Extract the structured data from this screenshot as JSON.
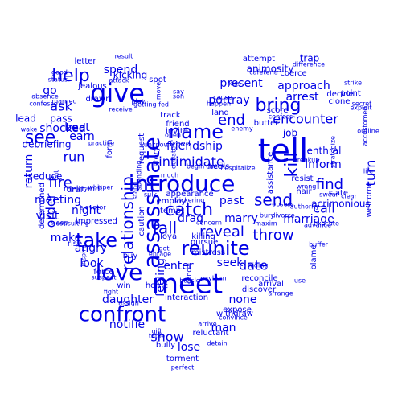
{
  "color": "#0000e6",
  "words": [
    "tell",
    "meet",
    "give",
    "introduce",
    "assassinate",
    "love",
    "confront",
    "take",
    "reunite",
    "name",
    "see",
    "help",
    "catch",
    "kill",
    "bring",
    "relationship",
    "send",
    "fall",
    "throw",
    "inform",
    "find",
    "fire",
    "reveal",
    "call",
    "portray",
    "turn",
    "end",
    "encounter",
    "arrest",
    "approach",
    "date",
    "marry",
    "present",
    "intimidate",
    "friendship",
    "run",
    "order",
    "ask",
    "return",
    "visit",
    "show",
    "daughter",
    "look",
    "seek",
    "none",
    "man",
    "notifie",
    "angry",
    "meeting",
    "make",
    "night",
    "earn",
    "shocked",
    "beat",
    "spend",
    "lead",
    "go",
    "kicking",
    "letter",
    "job",
    "drag",
    "past",
    "marriage",
    "enter",
    "feeling",
    "lose",
    "interaction",
    "bully",
    "torment",
    "perfect",
    "detain",
    "arrive",
    "reluctant",
    "withdraw",
    "expose",
    "convince",
    "discover",
    "arrival",
    "reconcile",
    "blame",
    "acrimonious",
    "slate",
    "swear",
    "hair",
    "resist",
    "enthral",
    "welcome",
    "clone",
    "decide",
    "exploit",
    "secret",
    "outline",
    "life",
    "animosity",
    "attempt",
    "trap",
    "difference",
    "coerce",
    "cafeteria",
    "kiss",
    "cause",
    "happen",
    "land",
    "score",
    "confess",
    "butter",
    "assistance",
    "obsess",
    "divorce",
    "authority",
    "advance",
    "execute",
    "buffer",
    "hiding",
    "arrange",
    "use",
    "fight",
    "assign",
    "hassle",
    "cancel",
    "mistress",
    "pursue",
    "killing",
    "loyal",
    "employ",
    "tempt",
    "appearance",
    "bickering",
    "concern",
    "invite",
    "friend",
    "freed",
    "track",
    "spot",
    "say",
    "son",
    "getting fed",
    "play",
    "attack",
    "receive",
    "drawn",
    "jealous",
    "married",
    "status",
    "good",
    "absence",
    "confesse",
    "result",
    "move",
    "story",
    "heels",
    "begin",
    "check",
    "hospitalize",
    "much",
    "debate",
    "open",
    "caution",
    "request",
    "form",
    "buy",
    "win",
    "home",
    "enrage",
    "got",
    "gift",
    "table",
    "suspect",
    "force",
    "rise",
    "inspire",
    "consulting",
    "sleep",
    "impressed",
    "elevator",
    "whisper",
    "meltrandi",
    "draft",
    "determined",
    "cut",
    "seduce",
    "debriefing",
    "practice",
    "wake",
    "pass",
    "spending",
    "stand",
    "strategize",
    "breakup",
    "wrong",
    "clear",
    "point",
    "strike",
    "accustomed",
    "bury",
    "maxim",
    "mayhem",
    "sulk",
    "unknown",
    "enemy"
  ]
}
